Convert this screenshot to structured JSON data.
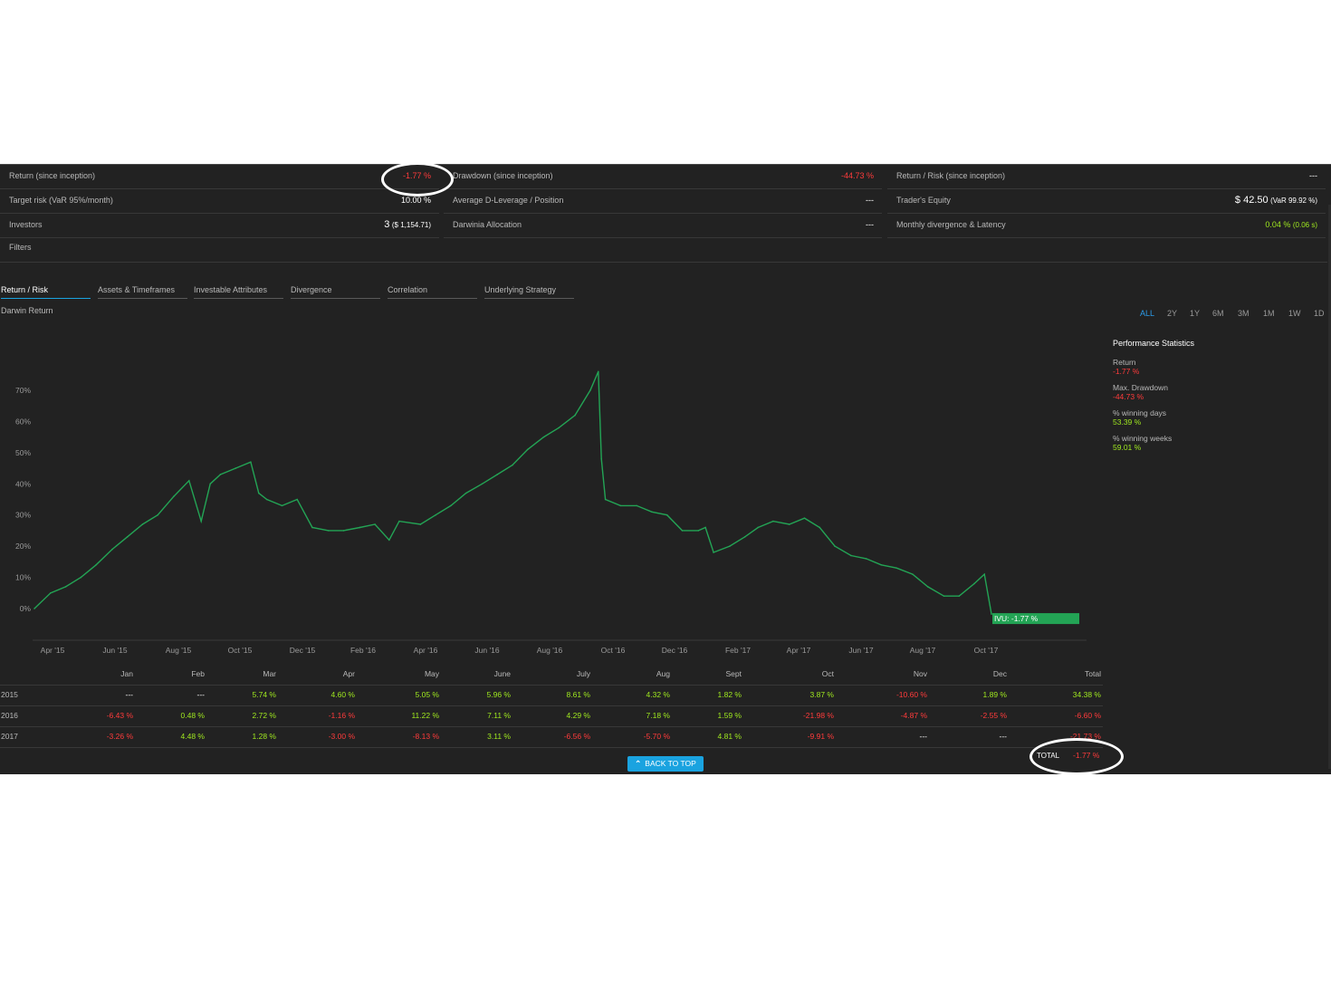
{
  "stats": {
    "col1": [
      {
        "label": "Return (since inception)",
        "value": "-1.77 %"
      },
      {
        "label": "Target risk (VaR 95%/month)",
        "value": "10.00 %"
      },
      {
        "label": "Investors",
        "value_main": "3",
        "value_sub": "($ 1,154.71)"
      },
      {
        "label": "Filters"
      }
    ],
    "col2": [
      {
        "label": "Drawdown (since inception)",
        "value": "-44.73 %"
      },
      {
        "label": "Average D-Leverage / Position",
        "value": "---"
      },
      {
        "label": "Darwinia Allocation",
        "value": "---"
      }
    ],
    "col3": [
      {
        "label": "Return / Risk (since inception)",
        "value": "---"
      },
      {
        "label": "Trader's Equity",
        "value_main": "$ 42.50",
        "value_sub": "(VaR 99.92 %)"
      },
      {
        "label": "Monthly divergence & Latency",
        "value_main": "0.04 %",
        "value_sub": "(0.06 s)"
      }
    ]
  },
  "tabs": [
    "Return / Risk",
    "Assets & Timeframes",
    "Investable Attributes",
    "Divergence",
    "Correlation",
    "Underlying Strategy"
  ],
  "chart_title": "Darwin Return",
  "ranges": [
    "ALL",
    "2Y",
    "1Y",
    "6M",
    "3M",
    "1M",
    "1W",
    "1D"
  ],
  "colors": {
    "line": "#23a455",
    "red": "#ff3b3b",
    "green": "#9fe81f",
    "accent": "#1aa3e0"
  },
  "chart_data": {
    "type": "line",
    "title": "",
    "x_ticks": [
      "Apr '15",
      "Jun '15",
      "Aug '15",
      "Oct '15",
      "Dec '15",
      "Feb '16",
      "Apr '16",
      "Jun '16",
      "Aug '16",
      "Oct '16",
      "Dec '16",
      "Feb '17",
      "Apr '17",
      "Jun '17",
      "Aug '17",
      "Oct '17"
    ],
    "y_ticks": [
      "0%",
      "10%",
      "20%",
      "30%",
      "40%",
      "50%",
      "60%",
      "70%"
    ],
    "ylim": [
      -2,
      80
    ],
    "series": [
      {
        "name": "",
        "x": [
          "2015-03-20",
          "2015-04-05",
          "2015-04-20",
          "2015-05-05",
          "2015-05-20",
          "2015-06-05",
          "2015-06-20",
          "2015-07-05",
          "2015-07-20",
          "2015-08-05",
          "2015-08-20",
          "2015-09-01",
          "2015-09-10",
          "2015-09-20",
          "2015-10-05",
          "2015-10-20",
          "2015-10-28",
          "2015-11-05",
          "2015-11-20",
          "2015-12-05",
          "2015-12-20",
          "2016-01-05",
          "2016-01-20",
          "2016-02-05",
          "2016-02-20",
          "2016-03-05",
          "2016-03-15",
          "2016-04-05",
          "2016-04-20",
          "2016-05-05",
          "2016-05-20",
          "2016-06-05",
          "2016-06-20",
          "2016-07-05",
          "2016-07-20",
          "2016-08-05",
          "2016-08-20",
          "2016-09-05",
          "2016-09-20",
          "2016-09-28",
          "2016-10-01",
          "2016-10-05",
          "2016-10-20",
          "2016-11-05",
          "2016-11-20",
          "2016-12-05",
          "2016-12-20",
          "2017-01-05",
          "2017-01-12",
          "2017-01-20",
          "2017-02-05",
          "2017-02-20",
          "2017-03-05",
          "2017-03-20",
          "2017-04-05",
          "2017-04-20",
          "2017-05-05",
          "2017-05-20",
          "2017-06-05",
          "2017-06-20",
          "2017-07-05",
          "2017-07-20",
          "2017-08-05",
          "2017-08-20",
          "2017-09-05",
          "2017-09-20",
          "2017-10-05",
          "2017-10-15",
          "2017-10-22"
        ],
        "values": [
          0,
          5,
          7,
          10,
          14,
          19,
          23,
          27,
          30,
          36,
          41,
          28,
          40,
          43,
          45,
          47,
          37,
          35,
          33,
          35,
          26,
          25,
          25,
          26,
          27,
          22,
          28,
          27,
          30,
          33,
          37,
          40,
          43,
          46,
          51,
          55,
          58,
          62,
          70,
          76,
          48,
          35,
          33,
          33,
          31,
          30,
          25,
          25,
          26,
          18,
          20,
          23,
          26,
          28,
          27,
          29,
          26,
          20,
          17,
          16,
          14,
          13,
          11,
          7,
          4,
          4,
          8,
          11,
          -1.77
        ]
      }
    ],
    "end_label": "IVU: -1.77 %"
  },
  "performance": {
    "title": "Performance Statistics",
    "items": [
      {
        "label": "Return",
        "value": "-1.77 %",
        "color": "red"
      },
      {
        "label": "Max. Drawdown",
        "value": "-44.73 %",
        "color": "red"
      },
      {
        "label": "% winning days",
        "value": "53.39 %",
        "color": "green"
      },
      {
        "label": "% winning weeks",
        "value": "59.01 %",
        "color": "green"
      }
    ]
  },
  "monthly": {
    "headers": [
      "Jan",
      "Feb",
      "Mar",
      "Apr",
      "May",
      "June",
      "July",
      "Aug",
      "Sept",
      "Oct",
      "Nov",
      "Dec",
      "Total"
    ],
    "rows": [
      {
        "year": "2015",
        "cells": [
          "---",
          "---",
          "5.74 %",
          "4.60 %",
          "5.05 %",
          "5.96 %",
          "8.61 %",
          "4.32 %",
          "1.82 %",
          "3.87 %",
          "-10.60 %",
          "1.89 %",
          "34.38 %"
        ]
      },
      {
        "year": "2016",
        "cells": [
          "-6.43 %",
          "0.48 %",
          "2.72 %",
          "-1.16 %",
          "11.22 %",
          "7.11 %",
          "4.29 %",
          "7.18 %",
          "1.59 %",
          "-21.98 %",
          "-4.87 %",
          "-2.55 %",
          "-6.60 %"
        ]
      },
      {
        "year": "2017",
        "cells": [
          "-3.26 %",
          "4.48 %",
          "1.28 %",
          "-3.00 %",
          "-8.13 %",
          "3.11 %",
          "-6.56 %",
          "-5.70 %",
          "4.81 %",
          "-9.91 %",
          "---",
          "---",
          "-21.73 %"
        ]
      }
    ],
    "total_label": "TOTAL",
    "total_value": "-1.77 %"
  },
  "back_to_top": "BACK TO TOP"
}
